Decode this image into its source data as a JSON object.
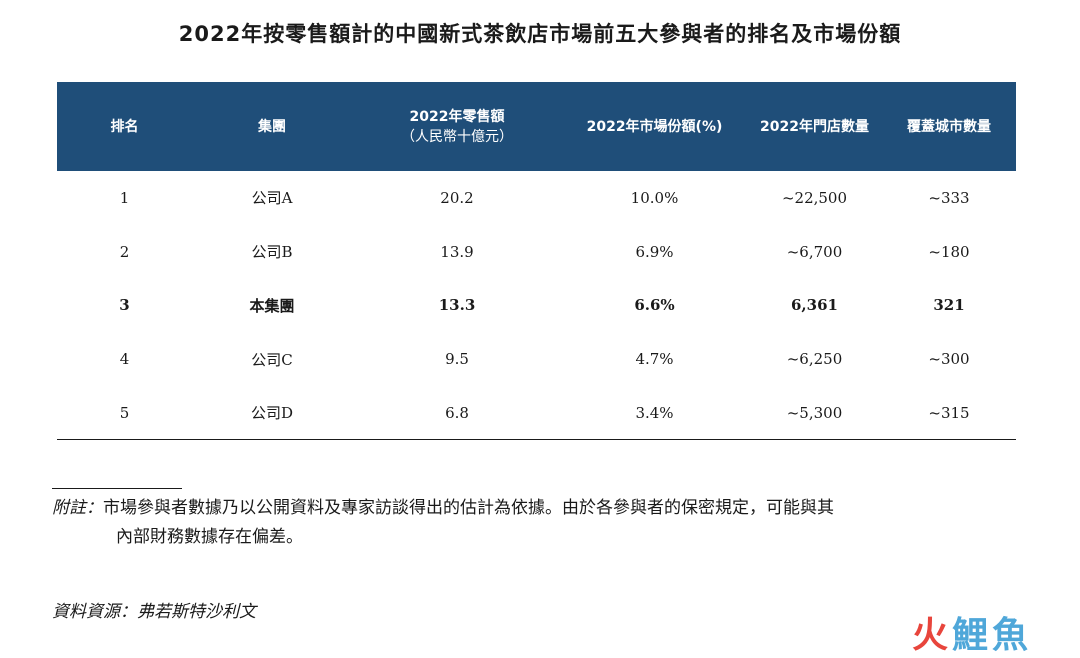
{
  "title": "2022年按零售額計的中國新式茶飲店市場前五大參與者的排名及市場份額",
  "table": {
    "headers": {
      "rank": "排名",
      "group": "集團",
      "sales_line1": "2022年零售額",
      "sales_line2": "（人民幣十億元）",
      "share": "2022年市場份額(%)",
      "stores": "2022年門店數量",
      "cities": "覆蓋城市數量"
    },
    "rows": [
      {
        "rank": "1",
        "group": "公司A",
        "sales": "20.2",
        "share": "10.0%",
        "stores": "~22,500",
        "cities": "~333",
        "bold": false
      },
      {
        "rank": "2",
        "group": "公司B",
        "sales": "13.9",
        "share": "6.9%",
        "stores": "~6,700",
        "cities": "~180",
        "bold": false
      },
      {
        "rank": "3",
        "group": "本集團",
        "sales": "13.3",
        "share": "6.6%",
        "stores": "6,361",
        "cities": "321",
        "bold": true
      },
      {
        "rank": "4",
        "group": "公司C",
        "sales": "9.5",
        "share": "4.7%",
        "stores": "~6,250",
        "cities": "~300",
        "bold": false
      },
      {
        "rank": "5",
        "group": "公司D",
        "sales": "6.8",
        "share": "3.4%",
        "stores": "~5,300",
        "cities": "~315",
        "bold": false
      }
    ]
  },
  "note": {
    "label": "附註：",
    "line1": "市場參與者數據乃以公開資料及專家訪談得出的估計為依據。由於各參與者的保密規定，可能與其",
    "line2": "內部財務數據存在偏差。"
  },
  "source": "資料資源：弗若斯特沙利文",
  "watermark": {
    "c1": "火",
    "c2": "鯉",
    "c3": "魚"
  }
}
